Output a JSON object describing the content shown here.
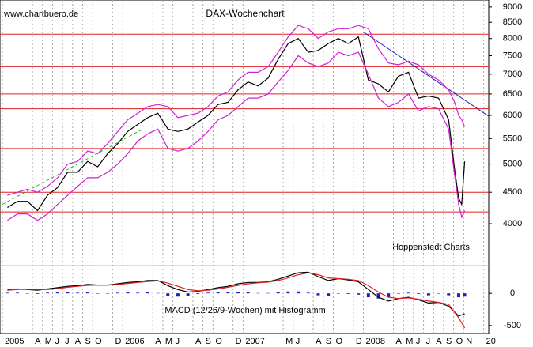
{
  "chart_data": [
    {
      "type": "line",
      "title": "DAX-Wochenchart",
      "source": "www.chartbuero.de",
      "annotation": "Hoppenstedt Charts",
      "log_scale": true,
      "xlim": [
        -0.24,
        48.5
      ],
      "ylim": [
        3430,
        9240
      ],
      "yticks": [
        4000,
        4500,
        5000,
        5500,
        6000,
        6500,
        7000,
        7500,
        8000,
        8500,
        9000
      ],
      "xticks": [
        {
          "value": 0,
          "label": "2005"
        },
        {
          "value": 3,
          "label": "A"
        },
        {
          "value": 4,
          "label": "M"
        },
        {
          "value": 5,
          "label": "J"
        },
        {
          "value": 6,
          "label": "J"
        },
        {
          "value": 7,
          "label": "A"
        },
        {
          "value": 8,
          "label": "S"
        },
        {
          "value": 9,
          "label": "O"
        },
        {
          "value": 11,
          "label": "D"
        },
        {
          "value": 12,
          "label": "2006"
        },
        {
          "value": 15,
          "label": "A"
        },
        {
          "value": 16,
          "label": "M"
        },
        {
          "value": 17,
          "label": "J"
        },
        {
          "value": 19,
          "label": "A"
        },
        {
          "value": 20,
          "label": "S"
        },
        {
          "value": 21,
          "label": "O"
        },
        {
          "value": 23,
          "label": "D"
        },
        {
          "value": 24,
          "label": "2007"
        },
        {
          "value": 28,
          "label": "M"
        },
        {
          "value": 29,
          "label": "J"
        },
        {
          "value": 31,
          "label": "A"
        },
        {
          "value": 32,
          "label": "S"
        },
        {
          "value": 33,
          "label": "O"
        },
        {
          "value": 35,
          "label": "D"
        },
        {
          "value": 36,
          "label": "2008"
        },
        {
          "value": 39,
          "label": "A"
        },
        {
          "value": 40,
          "label": "M"
        },
        {
          "value": 41,
          "label": "J"
        },
        {
          "value": 42,
          "label": "J"
        },
        {
          "value": 43,
          "label": "A"
        },
        {
          "value": 44,
          "label": "S"
        },
        {
          "value": 45,
          "label": "O"
        },
        {
          "value": 46,
          "label": "N"
        },
        {
          "value": 48,
          "label": "20"
        }
      ],
      "x": [
        0.5,
        1.5,
        2.5,
        3.5,
        4.5,
        5.5,
        6.5,
        7.5,
        8.5,
        9.5,
        10.5,
        11.5,
        12.5,
        13.5,
        14.5,
        15.5,
        16.5,
        17.5,
        18.5,
        19.5,
        20.5,
        21.5,
        22.5,
        23.5,
        24.5,
        25.5,
        26.5,
        27.5,
        28.5,
        29.5,
        30.5,
        31.5,
        32.5,
        33.5,
        34.5,
        35.5,
        36.5,
        37.5,
        38.5,
        39.5,
        40.5,
        41.5,
        42.5,
        43.5,
        44.5,
        45.1,
        45.5,
        45.8,
        46.1
      ],
      "series": [
        {
          "color": "#000000",
          "values": [
            4250,
            4350,
            4350,
            4200,
            4450,
            4580,
            4850,
            4850,
            5050,
            4950,
            5200,
            5400,
            5650,
            5800,
            5950,
            6050,
            5700,
            5650,
            5700,
            5850,
            6000,
            6250,
            6300,
            6600,
            6800,
            6700,
            6900,
            7400,
            7850,
            8000,
            7600,
            7650,
            7850,
            8000,
            7850,
            8050,
            6850,
            6750,
            6550,
            6950,
            7050,
            6400,
            6450,
            6400,
            5900,
            4900,
            4400,
            4300,
            5050
          ]
        },
        {
          "color": "#d020d0",
          "values": [
            4450,
            4500,
            4550,
            4500,
            4600,
            4750,
            5000,
            5050,
            5250,
            5200,
            5400,
            5650,
            5900,
            6050,
            6200,
            6250,
            6200,
            5950,
            6000,
            6050,
            6200,
            6450,
            6550,
            6850,
            7050,
            7050,
            7200,
            7600,
            8050,
            8400,
            8300,
            8000,
            8200,
            8300,
            8300,
            8400,
            8300,
            7700,
            7300,
            7250,
            7350,
            7250,
            7000,
            6850,
            6600,
            6300,
            6000,
            5900,
            5750
          ]
        },
        {
          "color": "#d020d0",
          "values": [
            4050,
            4150,
            4150,
            4050,
            4150,
            4300,
            4450,
            4600,
            4750,
            4750,
            4850,
            5000,
            5200,
            5450,
            5600,
            5700,
            5300,
            5250,
            5300,
            5450,
            5650,
            5900,
            6000,
            6200,
            6400,
            6400,
            6500,
            6800,
            7100,
            7500,
            7300,
            7200,
            7300,
            7600,
            7500,
            7600,
            7000,
            6400,
            6200,
            6300,
            6500,
            6100,
            6200,
            6150,
            5700,
            4800,
            4300,
            4100,
            4200
          ]
        }
      ],
      "hlines": {
        "color": "#e02020",
        "values": [
          8130,
          7200,
          6500,
          6150,
          5300,
          4500,
          4180
        ]
      },
      "trendlines": [
        {
          "color": "#2020c0",
          "dashed": false,
          "x": [
            36,
            48.5
          ],
          "values": [
            8200,
            5980
          ]
        },
        {
          "color": "#20c020",
          "dashed": true,
          "x": [
            0,
            14
          ],
          "values": [
            4300,
            5700
          ]
        }
      ]
    },
    {
      "type": "line",
      "title": "MACD (12/26/9-Wochen) mit Histogramm",
      "xlim": [
        -0.24,
        48.5
      ],
      "ylim": [
        -600,
        420
      ],
      "yticks": [
        0,
        -500
      ],
      "x": [
        0.5,
        1.5,
        2.5,
        3.5,
        4.5,
        5.5,
        6.5,
        7.5,
        8.5,
        9.5,
        10.5,
        11.5,
        12.5,
        13.5,
        14.5,
        15.5,
        16.5,
        17.5,
        18.5,
        19.5,
        20.5,
        21.5,
        22.5,
        23.5,
        24.5,
        25.5,
        26.5,
        27.5,
        28.5,
        29.5,
        30.5,
        31.5,
        32.5,
        33.5,
        34.5,
        35.5,
        36.5,
        37.5,
        38.5,
        39.5,
        40.5,
        41.5,
        42.5,
        43.5,
        44.5,
        45.5,
        46.1
      ],
      "series": [
        {
          "color": "#2020c0",
          "kind": "bar",
          "values": [
            10,
            10,
            -5,
            -10,
            10,
            15,
            15,
            10,
            15,
            0,
            0,
            10,
            15,
            10,
            15,
            5,
            -40,
            -50,
            -40,
            -10,
            10,
            20,
            15,
            25,
            20,
            5,
            5,
            20,
            30,
            30,
            10,
            -30,
            -40,
            0,
            -10,
            -20,
            -60,
            -80,
            -60,
            0,
            10,
            -10,
            -30,
            0,
            -30,
            -60,
            -50
          ]
        },
        {
          "color": "#000000",
          "kind": "line",
          "values": [
            60,
            70,
            60,
            50,
            70,
            90,
            110,
            120,
            140,
            130,
            130,
            150,
            170,
            180,
            200,
            200,
            120,
            60,
            20,
            30,
            60,
            90,
            110,
            150,
            170,
            170,
            180,
            220,
            270,
            320,
            330,
            260,
            200,
            230,
            210,
            180,
            60,
            -60,
            -120,
            -80,
            -60,
            -100,
            -150,
            -140,
            -200,
            -350,
            -320
          ]
        },
        {
          "color": "#e02020",
          "kind": "line",
          "values": [
            50,
            60,
            65,
            60,
            60,
            75,
            95,
            110,
            125,
            130,
            130,
            140,
            155,
            170,
            185,
            195,
            160,
            110,
            60,
            40,
            50,
            70,
            95,
            125,
            150,
            165,
            175,
            200,
            240,
            290,
            320,
            290,
            240,
            230,
            220,
            200,
            120,
            20,
            -60,
            -80,
            -70,
            -90,
            -120,
            -140,
            -170,
            -380,
            -540
          ]
        }
      ]
    }
  ]
}
